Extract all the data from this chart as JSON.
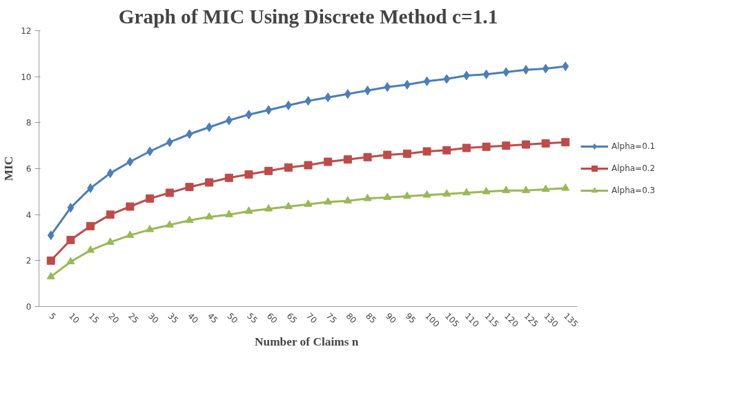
{
  "chart_data": {
    "type": "line",
    "title": "Graph of MIC Using Discrete Method c=1.1",
    "xlabel": "Number  of Claims n",
    "ylabel": "MIC",
    "categories": [
      "5",
      "10",
      "15",
      "20",
      "25",
      "30",
      "35",
      "40",
      "45",
      "50",
      "55",
      "60",
      "65",
      "70",
      "75",
      "80",
      "85",
      "90",
      "95",
      "100",
      "105",
      "110",
      "115",
      "120",
      "125",
      "130",
      "135"
    ],
    "ylim": [
      0,
      12
    ],
    "yticks": [
      0,
      2,
      4,
      6,
      8,
      10,
      12
    ],
    "grid": false,
    "legend": "right",
    "series": [
      {
        "name": "Alpha=0.1",
        "color": "#4a7ebb",
        "marker": "diamond",
        "values": [
          3.1,
          4.3,
          5.15,
          5.8,
          6.3,
          6.75,
          7.15,
          7.5,
          7.8,
          8.1,
          8.35,
          8.55,
          8.75,
          8.95,
          9.1,
          9.25,
          9.4,
          9.55,
          9.65,
          9.8,
          9.9,
          10.05,
          10.1,
          10.2,
          10.3,
          10.35,
          10.45
        ]
      },
      {
        "name": "Alpha=0.2",
        "color": "#be4b48",
        "marker": "square",
        "values": [
          2.0,
          2.9,
          3.5,
          4.0,
          4.35,
          4.7,
          4.95,
          5.2,
          5.4,
          5.6,
          5.75,
          5.9,
          6.05,
          6.15,
          6.3,
          6.4,
          6.5,
          6.6,
          6.65,
          6.75,
          6.8,
          6.9,
          6.95,
          7.0,
          7.05,
          7.1,
          7.15
        ]
      },
      {
        "name": "Alpha=0.3",
        "color": "#98b954",
        "marker": "triangle",
        "values": [
          1.3,
          1.95,
          2.45,
          2.8,
          3.1,
          3.35,
          3.55,
          3.75,
          3.9,
          4.0,
          4.15,
          4.25,
          4.35,
          4.45,
          4.55,
          4.6,
          4.7,
          4.75,
          4.8,
          4.85,
          4.9,
          4.95,
          5.0,
          5.05,
          5.05,
          5.1,
          5.15
        ]
      }
    ]
  }
}
